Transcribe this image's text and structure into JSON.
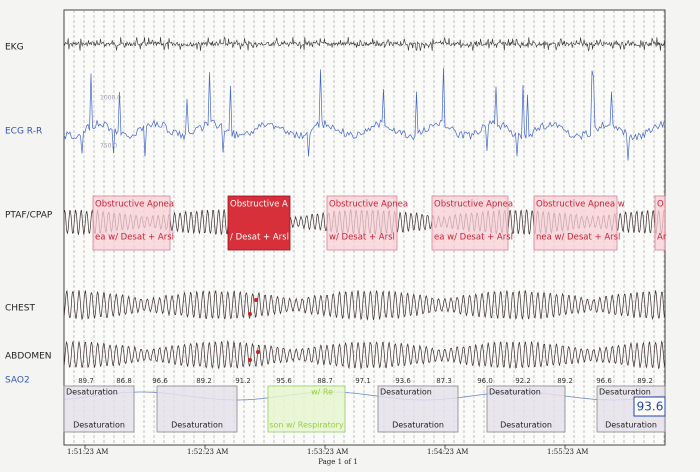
{
  "channels": [
    "EKG",
    "ECG R-R",
    "PTAF/CPAP",
    "CHEST",
    "ABDOMEN",
    "SAO2"
  ],
  "ecg_scale": [
    "1000.0",
    "750.0"
  ],
  "events": [
    {
      "top": "Obstructive Apnea",
      "bottom": "ea w/ Desat + Arsl"
    },
    {
      "top": "Obstructive A",
      "bottom": "/ Desat + Arsl"
    },
    {
      "top": "Obstructive Apnea",
      "bottom": "w/ Desat + Arsl"
    },
    {
      "top": "Obstructive Apnea",
      "bottom": "ea w/ Desat + Arsl"
    },
    {
      "top": "Obstructive Apnea w",
      "bottom": "nea w/ Desat + Arsl"
    },
    {
      "top": "O",
      "bottom": "Ar"
    }
  ],
  "sao2_values": [
    "89.7",
    "86.8",
    "96.6",
    "89.2",
    "91.2",
    "95.6",
    "88.7",
    "97.1",
    "93.6",
    "87.3",
    "96.0",
    "92.2",
    "89.2",
    "96.6",
    "89.2"
  ],
  "sao2_events": [
    {
      "top": "Desaturation",
      "bottom": "Desaturation"
    },
    {
      "bottom": "Desaturation"
    },
    {
      "top": "w/ Re",
      "bottom": "son w/ Respiratory"
    },
    {
      "top": "Desaturation",
      "bottom": "Desaturation"
    },
    {
      "top": "Desaturation",
      "bottom": "Desaturation"
    },
    {
      "top": "Desaturation",
      "bottom": "Desaturation"
    }
  ],
  "sao2_current": "93.6",
  "times": [
    "1:51:23 AM",
    "1:52:23 AM",
    "1:53:23 AM",
    "1:54:23 AM",
    "1:55:23 AM"
  ],
  "footer": "Page 1 of 1"
}
